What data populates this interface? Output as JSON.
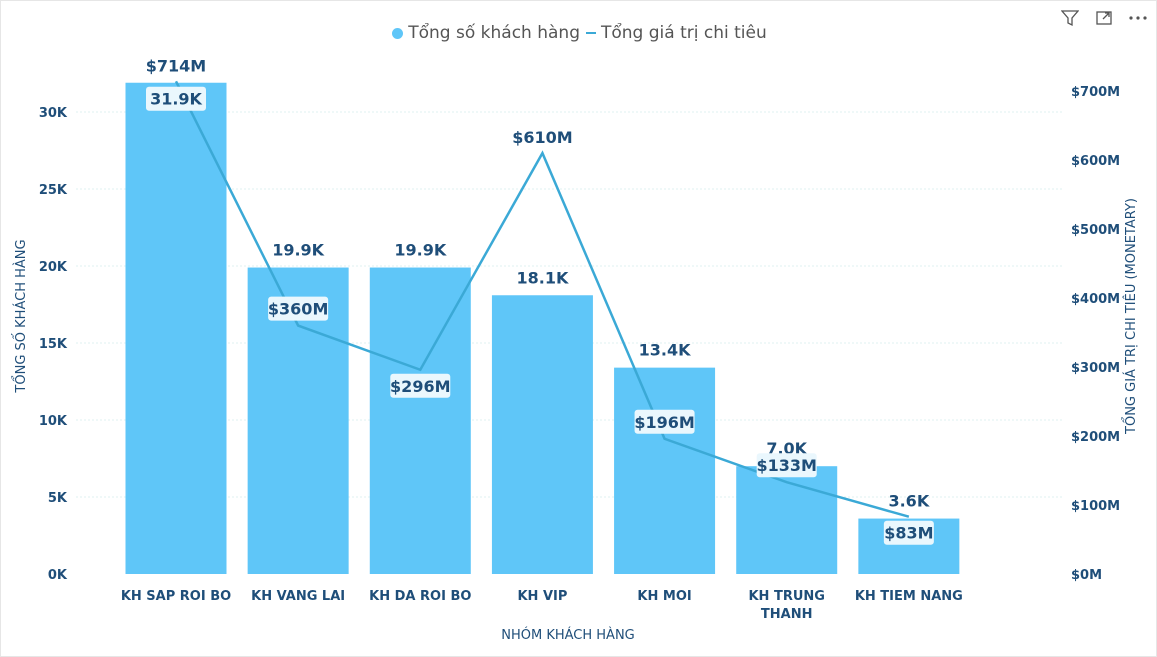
{
  "legend": {
    "bar_label": "Tổng số khách hàng",
    "line_label": "Tổng giá trị chi tiêu"
  },
  "toolbar": {
    "filter_icon": "filter-icon",
    "focus_icon": "focus-mode-icon",
    "more_icon": "more-options-icon"
  },
  "colors": {
    "bar": "#5fc6f8",
    "line": "#3ba9d6",
    "label_text": "#1f4e79",
    "axis_text": "#1f4e79",
    "grid": "#dff2f2"
  },
  "chart_data": {
    "type": "bar+line",
    "xlabel": "NHÓM KHÁCH HÀNG",
    "ylabel_left": "TỔNG SỐ KHÁCH HÀNG",
    "ylabel_right": "TỔNG GIÁ TRỊ CHI TIÊU (MONETARY)",
    "categories": [
      [
        "KH SAP ROI BO"
      ],
      [
        "KH VANG LAI"
      ],
      [
        "KH DA ROI BO"
      ],
      [
        "KH VIP"
      ],
      [
        "KH MOI"
      ],
      [
        "KH TRUNG",
        "THANH"
      ],
      [
        "KH TIEM NANG"
      ]
    ],
    "series": [
      {
        "name": "Tổng số khách hàng",
        "type": "bar",
        "axis": "left",
        "values": [
          31900,
          19900,
          19900,
          18100,
          13400,
          7000,
          3600
        ],
        "labels": [
          "31.9K",
          "19.9K",
          "19.9K",
          "18.1K",
          "13.4K",
          "7.0K",
          "3.6K"
        ]
      },
      {
        "name": "Tổng giá trị chi tiêu",
        "type": "line",
        "axis": "right",
        "values": [
          714,
          360,
          296,
          610,
          196,
          133,
          83
        ],
        "labels": [
          "$714M",
          "$360M",
          "$296M",
          "$610M",
          "$196M",
          "$133M",
          "$83M"
        ]
      }
    ],
    "y_left": {
      "range": [
        0,
        32000
      ],
      "ticks": [
        0,
        5000,
        10000,
        15000,
        20000,
        25000,
        30000
      ],
      "tick_labels": [
        "0K",
        "5K",
        "10K",
        "15K",
        "20K",
        "25K",
        "30K"
      ]
    },
    "y_right": {
      "range": [
        0,
        700
      ],
      "ticks": [
        0,
        100,
        200,
        300,
        400,
        500,
        600,
        700
      ],
      "tick_labels": [
        "$0M",
        "$100M",
        "$200M",
        "$300M",
        "$400M",
        "$500M",
        "$600M",
        "$700M"
      ]
    },
    "grid": true,
    "legend_position": "top-center"
  }
}
